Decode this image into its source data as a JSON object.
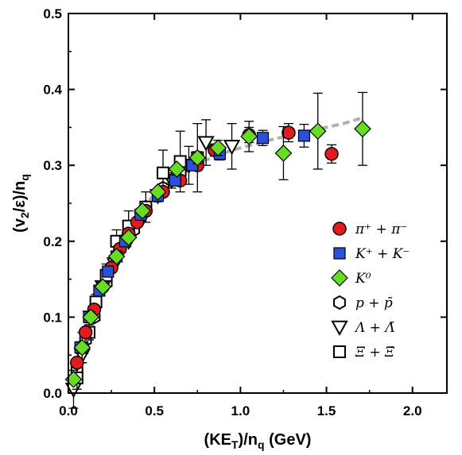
{
  "chart_data": {
    "type": "scatter",
    "xlabel": "(KE_T)/n_q (GeV)",
    "ylabel": "(v_2/ε)/n_q",
    "xlim": [
      0,
      2.2
    ],
    "ylim": [
      0,
      0.5
    ],
    "x_ticks": [
      "0.0",
      "0.5",
      "1.0",
      "1.5",
      "2.0"
    ],
    "y_ticks": [
      "0.0",
      "0.1",
      "0.2",
      "0.3",
      "0.4",
      "0.5"
    ],
    "grid": false,
    "legend_position": "right",
    "fit_curve": {
      "style": "dashed",
      "color": "#b0b0b0",
      "x": [
        0.0,
        0.1,
        0.2,
        0.3,
        0.4,
        0.5,
        0.6,
        0.7,
        0.8,
        0.9,
        1.0,
        1.2,
        1.4,
        1.6,
        1.7
      ],
      "y": [
        0.0,
        0.085,
        0.15,
        0.2,
        0.235,
        0.262,
        0.28,
        0.295,
        0.307,
        0.316,
        0.323,
        0.335,
        0.345,
        0.355,
        0.362
      ]
    },
    "series": [
      {
        "name": "π⁺ + π⁻",
        "marker": "circle",
        "color": "#e41a1c",
        "x": [
          0.05,
          0.1,
          0.15,
          0.2,
          0.25,
          0.3,
          0.35,
          0.4,
          0.45,
          0.55,
          0.65,
          0.75,
          0.85,
          1.05,
          1.28,
          1.53
        ],
        "y": [
          0.04,
          0.08,
          0.11,
          0.14,
          0.165,
          0.19,
          0.21,
          0.225,
          0.24,
          0.265,
          0.28,
          0.3,
          0.32,
          0.34,
          0.343,
          0.315
        ],
        "yerr": [
          0.004,
          0.004,
          0.004,
          0.004,
          0.004,
          0.004,
          0.004,
          0.004,
          0.004,
          0.005,
          0.006,
          0.007,
          0.008,
          0.01,
          0.012,
          0.012
        ]
      },
      {
        "name": "K⁺ + K⁻",
        "marker": "square",
        "color": "#2850d8",
        "x": [
          0.07,
          0.12,
          0.18,
          0.23,
          0.28,
          0.33,
          0.42,
          0.52,
          0.62,
          0.72,
          0.88,
          1.13,
          1.37
        ],
        "y": [
          0.06,
          0.1,
          0.135,
          0.16,
          0.18,
          0.2,
          0.235,
          0.26,
          0.28,
          0.3,
          0.315,
          0.336,
          0.339
        ],
        "yerr": [
          0.004,
          0.004,
          0.004,
          0.004,
          0.004,
          0.004,
          0.004,
          0.005,
          0.006,
          0.007,
          0.008,
          0.01,
          0.015
        ]
      },
      {
        "name": "K⁰",
        "marker": "diamond",
        "color": "#66dd22",
        "x": [
          0.03,
          0.08,
          0.13,
          0.2,
          0.28,
          0.35,
          0.43,
          0.52,
          0.63,
          0.75,
          0.87,
          1.05,
          1.25,
          1.45,
          1.71
        ],
        "y": [
          0.018,
          0.06,
          0.1,
          0.14,
          0.18,
          0.205,
          0.24,
          0.265,
          0.295,
          0.31,
          0.323,
          0.338,
          0.316,
          0.345,
          0.348
        ],
        "yerr": [
          0.005,
          0.004,
          0.004,
          0.004,
          0.004,
          0.004,
          0.005,
          0.005,
          0.006,
          0.008,
          0.01,
          0.02,
          0.035,
          0.05,
          0.048
        ]
      },
      {
        "name": "p + p̄",
        "marker": "hexagon",
        "color": "#000000",
        "x": [
          0.05,
          0.1,
          0.15,
          0.22,
          0.3,
          0.38,
          0.45,
          0.55,
          0.65,
          0.75
        ],
        "y": [
          0.03,
          0.07,
          0.1,
          0.145,
          0.19,
          0.215,
          0.245,
          0.27,
          0.29,
          0.305
        ],
        "yerr": [
          0.004,
          0.004,
          0.004,
          0.004,
          0.004,
          0.004,
          0.005,
          0.006,
          0.008,
          0.01
        ]
      },
      {
        "name": "Λ + Λ̄",
        "marker": "triangle-down",
        "color": "#000000",
        "x": [
          0.03,
          0.08,
          0.13,
          0.2,
          0.27,
          0.35,
          0.43,
          0.52,
          0.6,
          0.7,
          0.8,
          0.95
        ],
        "y": [
          0.005,
          0.05,
          0.1,
          0.14,
          0.17,
          0.2,
          0.23,
          0.26,
          0.28,
          0.3,
          0.33,
          0.325
        ],
        "yerr": [
          0.025,
          0.01,
          0.006,
          0.005,
          0.005,
          0.005,
          0.006,
          0.008,
          0.01,
          0.025,
          0.03,
          0.03
        ]
      },
      {
        "name": "Ξ + Ξ̄",
        "marker": "square-open",
        "color": "#000000",
        "x": [
          0.05,
          0.08,
          0.12,
          0.16,
          0.22,
          0.28,
          0.35,
          0.45,
          0.55,
          0.65,
          0.75
        ],
        "y": [
          0.02,
          0.06,
          0.08,
          0.12,
          0.155,
          0.2,
          0.22,
          0.245,
          0.29,
          0.305,
          0.31
        ],
        "yerr": [
          0.015,
          0.02,
          0.01,
          0.01,
          0.015,
          0.015,
          0.02,
          0.02,
          0.03,
          0.04,
          0.045
        ]
      }
    ]
  }
}
